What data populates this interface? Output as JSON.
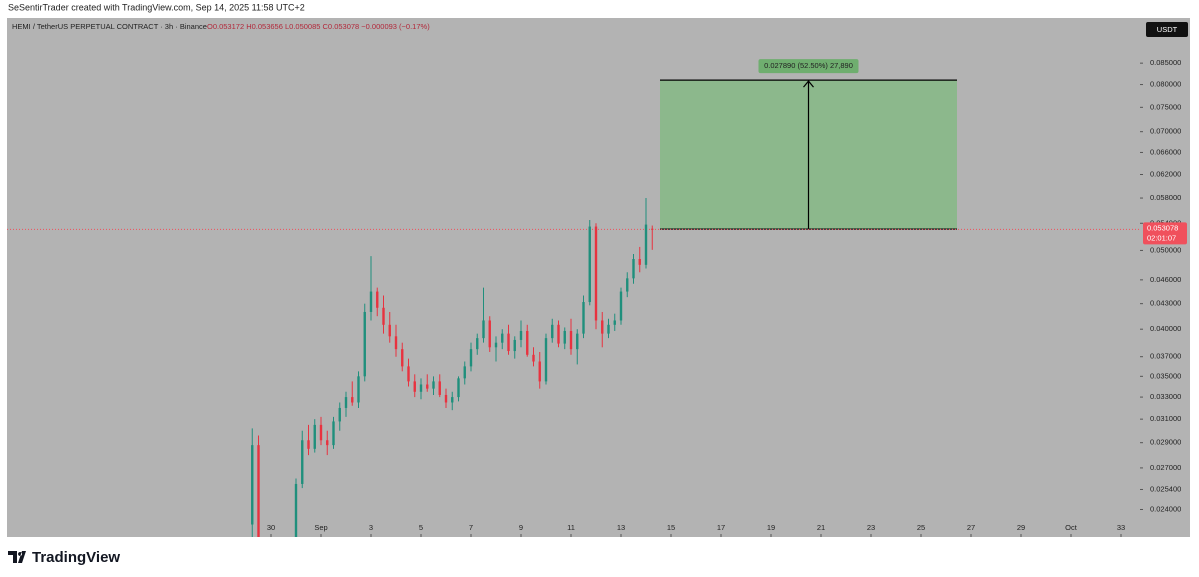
{
  "header": {
    "credit": "SeSentirTrader created with TradingView.com, Sep 14, 2025 11:58 UTC+2",
    "currency": "USDT",
    "brand": "TradingView"
  },
  "chart_data": {
    "type": "candlestick",
    "title": "HEMI / TetherUS PERPETUAL CONTRACT · 3h · Binance",
    "ohlc_text": "O0.053172 H0.053656 L0.050085 C0.053078 −0.000093 (−0.17%)",
    "log": true,
    "up_color": "#1f8f7c",
    "down_color": "#e8323f",
    "x": [
      -1.75,
      -1.5,
      0,
      0.25,
      0.5,
      0.75,
      1,
      1.25,
      1.5,
      1.75,
      2,
      2.25,
      2.5,
      2.75,
      3,
      3.25,
      3.5,
      3.75,
      4,
      4.25,
      4.5,
      4.75,
      5,
      5.25,
      5.5,
      5.75,
      6,
      6.25,
      6.5,
      6.75,
      7,
      7.25,
      7.5,
      7.75,
      8,
      8.25,
      8.5,
      8.75,
      9,
      9.25,
      9.5,
      9.75,
      10,
      10.25,
      10.5,
      10.75,
      11,
      11.25,
      11.5,
      11.75,
      12,
      12.25,
      12.5,
      12.75,
      13,
      13.25,
      13.5,
      13.75,
      14,
      14.25
    ],
    "open": [
      0.023,
      0.0288,
      0.0222,
      0.0258,
      0.0292,
      0.0285,
      0.0305,
      0.0292,
      0.0288,
      0.0308,
      0.032,
      0.033,
      0.0325,
      0.035,
      0.042,
      0.0445,
      0.0425,
      0.0405,
      0.0392,
      0.0378,
      0.036,
      0.0345,
      0.0335,
      0.0342,
      0.0338,
      0.0345,
      0.0332,
      0.0325,
      0.033,
      0.0348,
      0.036,
      0.0378,
      0.039,
      0.041,
      0.038,
      0.0385,
      0.0395,
      0.0376,
      0.0388,
      0.0398,
      0.0372,
      0.0365,
      0.0345,
      0.039,
      0.0405,
      0.0384,
      0.0398,
      0.0378,
      0.0395,
      0.0432,
      0.0535,
      0.041,
      0.0395,
      0.0405,
      0.041,
      0.0445,
      0.0462,
      0.0488,
      0.048,
      0.053172
    ],
    "high": [
      0.0302,
      0.0296,
      0.0262,
      0.03,
      0.0305,
      0.031,
      0.0312,
      0.03,
      0.0312,
      0.0325,
      0.0335,
      0.0345,
      0.0355,
      0.043,
      0.0492,
      0.045,
      0.044,
      0.042,
      0.0405,
      0.0385,
      0.0368,
      0.0352,
      0.0348,
      0.0352,
      0.035,
      0.0352,
      0.0338,
      0.0335,
      0.035,
      0.0365,
      0.0385,
      0.0395,
      0.045,
      0.0415,
      0.0392,
      0.04,
      0.0405,
      0.0392,
      0.041,
      0.0405,
      0.038,
      0.0375,
      0.0395,
      0.0412,
      0.041,
      0.0402,
      0.0412,
      0.04,
      0.044,
      0.0545,
      0.054,
      0.042,
      0.0412,
      0.0418,
      0.045,
      0.047,
      0.0495,
      0.0505,
      0.058,
      0.053656
    ],
    "low": [
      0.0218,
      0.0215,
      0.0215,
      0.0255,
      0.028,
      0.0282,
      0.0288,
      0.028,
      0.0285,
      0.03,
      0.0312,
      0.0322,
      0.032,
      0.0345,
      0.041,
      0.0415,
      0.0395,
      0.0385,
      0.037,
      0.0355,
      0.034,
      0.033,
      0.0328,
      0.0335,
      0.0332,
      0.033,
      0.032,
      0.0318,
      0.0326,
      0.0342,
      0.0355,
      0.0372,
      0.0385,
      0.0375,
      0.0365,
      0.0378,
      0.0372,
      0.0368,
      0.038,
      0.037,
      0.036,
      0.0338,
      0.0342,
      0.0385,
      0.038,
      0.0378,
      0.0372,
      0.0362,
      0.039,
      0.0428,
      0.04,
      0.038,
      0.039,
      0.0398,
      0.0405,
      0.0438,
      0.0455,
      0.047,
      0.0475,
      0.050085
    ],
    "close": [
      0.0288,
      0.0222,
      0.0258,
      0.0292,
      0.0285,
      0.0305,
      0.0292,
      0.0288,
      0.0308,
      0.032,
      0.033,
      0.0325,
      0.035,
      0.042,
      0.0445,
      0.0425,
      0.0405,
      0.0392,
      0.0378,
      0.036,
      0.0345,
      0.0335,
      0.0342,
      0.0338,
      0.0345,
      0.0332,
      0.0325,
      0.033,
      0.0348,
      0.036,
      0.0378,
      0.039,
      0.041,
      0.038,
      0.0385,
      0.0395,
      0.0376,
      0.0388,
      0.0398,
      0.0372,
      0.0365,
      0.0345,
      0.039,
      0.0405,
      0.0384,
      0.0398,
      0.0378,
      0.0395,
      0.0432,
      0.0535,
      0.041,
      0.0395,
      0.0405,
      0.041,
      0.0445,
      0.0462,
      0.0488,
      0.048,
      0.0538,
      0.053078
    ],
    "xlim": [
      -11.56,
      33.76
    ],
    "ylim": [
      0.0222,
      0.0966
    ],
    "xticks": [
      {
        "value": -1,
        "label": "30"
      },
      {
        "value": 1,
        "label": "Sep"
      },
      3,
      5,
      7,
      9,
      11,
      13,
      15,
      17,
      19,
      21,
      23,
      25,
      27,
      29,
      {
        "value": 31,
        "label": "Oct"
      },
      33
    ],
    "yticks": [
      {
        "value": 0.024,
        "label": "0.024000"
      },
      {
        "value": 0.0254,
        "label": "0.025400"
      },
      {
        "value": 0.027,
        "label": "0.027000"
      },
      {
        "value": 0.029,
        "label": "0.029000"
      },
      {
        "value": 0.031,
        "label": "0.031000"
      },
      {
        "value": 0.033,
        "label": "0.033000"
      },
      {
        "value": 0.035,
        "label": "0.035000"
      },
      {
        "value": 0.037,
        "label": "0.037000"
      },
      {
        "value": 0.04,
        "label": "0.040000"
      },
      {
        "value": 0.043,
        "label": "0.043000"
      },
      {
        "value": 0.046,
        "label": "0.046000"
      },
      {
        "value": 0.05,
        "label": "0.050000"
      },
      {
        "value": 0.054,
        "label": "0.054000"
      },
      {
        "value": 0.058,
        "label": "0.058000"
      },
      {
        "value": 0.062,
        "label": "0.062000"
      },
      {
        "value": 0.066,
        "label": "0.066000"
      },
      {
        "value": 0.07,
        "label": "0.070000"
      },
      {
        "value": 0.075,
        "label": "0.075000"
      },
      {
        "value": 0.08,
        "label": "0.080000"
      },
      {
        "value": 0.085,
        "label": "0.085000"
      }
    ],
    "last_price": 0.053078,
    "countdown": "02:01:07",
    "last_color": "#f0505c",
    "position": {
      "entry": 0.05312,
      "target": 0.08101,
      "x_start": 14.56,
      "x_end": 26.44,
      "label": "0.027890 (52.50%) 27,890",
      "color": "#8cb88c"
    }
  }
}
